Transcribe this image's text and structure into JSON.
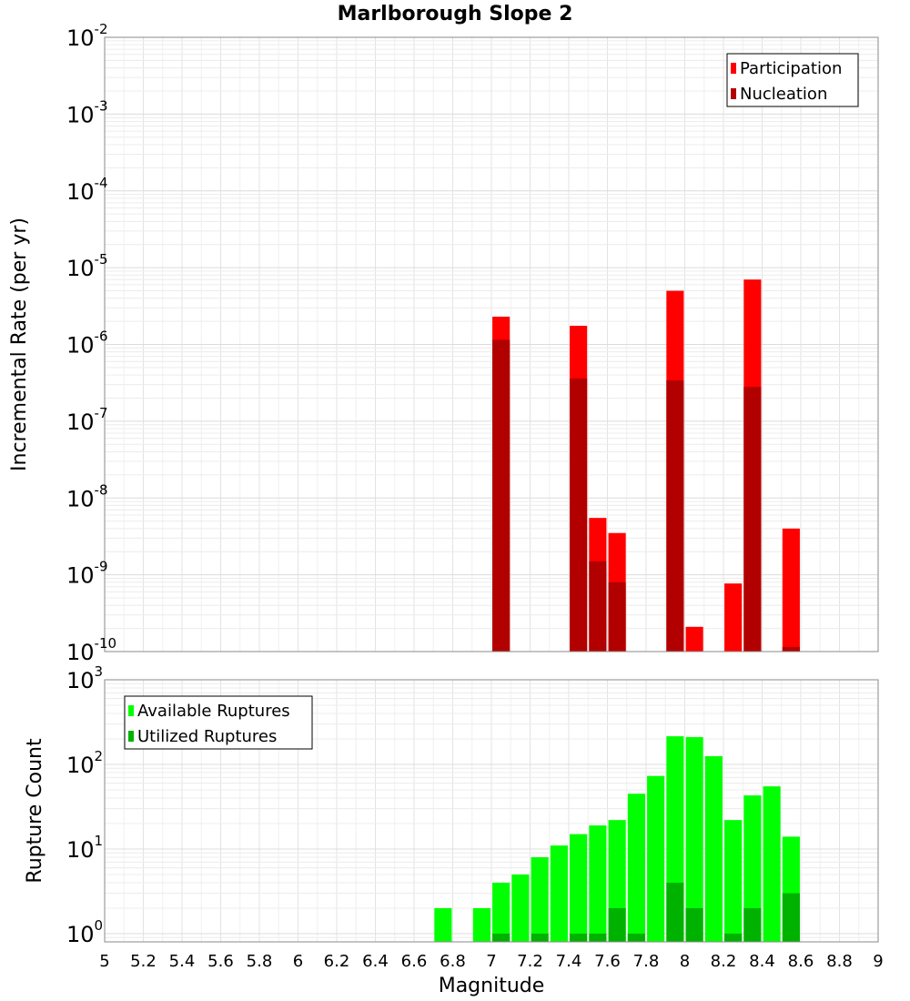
{
  "title": "Marlborough Slope 2",
  "chart_data": [
    {
      "type": "bar",
      "name": "incremental-rate",
      "ylabel": "Incremental Rate (per yr)",
      "yscale": "log",
      "ylim": [
        1e-10,
        0.01
      ],
      "xlim": [
        5,
        9
      ],
      "grid": true,
      "legend_position": "top-right",
      "y_ticks": [
        {
          "base": "10",
          "exp": "-10"
        },
        {
          "base": "10",
          "exp": "-9"
        },
        {
          "base": "10",
          "exp": "-8"
        },
        {
          "base": "10",
          "exp": "-7"
        },
        {
          "base": "10",
          "exp": "-6"
        },
        {
          "base": "10",
          "exp": "-5"
        },
        {
          "base": "10",
          "exp": "-4"
        },
        {
          "base": "10",
          "exp": "-3"
        },
        {
          "base": "10",
          "exp": "-2"
        }
      ],
      "series": [
        {
          "name": "Participation",
          "color": "#ff0000",
          "points": [
            {
              "x": 7.05,
              "y": 2.3e-06
            },
            {
              "x": 7.45,
              "y": 1.75e-06
            },
            {
              "x": 7.55,
              "y": 5.5e-09
            },
            {
              "x": 7.65,
              "y": 3.5e-09
            },
            {
              "x": 7.95,
              "y": 5e-06
            },
            {
              "x": 8.05,
              "y": 2.1e-10
            },
            {
              "x": 8.25,
              "y": 7.7e-10
            },
            {
              "x": 8.35,
              "y": 7e-06
            },
            {
              "x": 8.55,
              "y": 4e-09
            }
          ]
        },
        {
          "name": "Nucleation",
          "color": "#b20000",
          "points": [
            {
              "x": 7.05,
              "y": 1.15e-06
            },
            {
              "x": 7.45,
              "y": 3.6e-07
            },
            {
              "x": 7.55,
              "y": 1.5e-09
            },
            {
              "x": 7.65,
              "y": 8e-10
            },
            {
              "x": 7.95,
              "y": 3.4e-07
            },
            {
              "x": 8.35,
              "y": 2.8e-07
            },
            {
              "x": 8.55,
              "y": 1.15e-10
            }
          ]
        }
      ]
    },
    {
      "type": "bar",
      "name": "rupture-count",
      "ylabel": "Rupture Count",
      "xlabel": "Magnitude",
      "yscale": "log",
      "ylim": [
        0.8,
        1000
      ],
      "xlim": [
        5,
        9
      ],
      "grid": true,
      "legend_position": "top-left",
      "x_ticks": [
        "5",
        "5.2",
        "5.4",
        "5.6",
        "5.8",
        "6",
        "6.2",
        "6.4",
        "6.6",
        "6.8",
        "7",
        "7.2",
        "7.4",
        "7.6",
        "7.8",
        "8",
        "8.2",
        "8.4",
        "8.6",
        "8.8",
        "9"
      ],
      "y_ticks": [
        {
          "base": "10",
          "exp": "0"
        },
        {
          "base": "10",
          "exp": "1"
        },
        {
          "base": "10",
          "exp": "2"
        },
        {
          "base": "10",
          "exp": "3"
        }
      ],
      "series": [
        {
          "name": "Available Ruptures",
          "color": "#00ff00",
          "points": [
            {
              "x": 6.75,
              "y": 2
            },
            {
              "x": 6.95,
              "y": 2
            },
            {
              "x": 7.05,
              "y": 4
            },
            {
              "x": 7.15,
              "y": 5
            },
            {
              "x": 7.25,
              "y": 8
            },
            {
              "x": 7.35,
              "y": 11
            },
            {
              "x": 7.45,
              "y": 15
            },
            {
              "x": 7.55,
              "y": 19
            },
            {
              "x": 7.65,
              "y": 22
            },
            {
              "x": 7.75,
              "y": 45
            },
            {
              "x": 7.85,
              "y": 73
            },
            {
              "x": 7.95,
              "y": 215
            },
            {
              "x": 8.05,
              "y": 210
            },
            {
              "x": 8.15,
              "y": 125
            },
            {
              "x": 8.25,
              "y": 22
            },
            {
              "x": 8.35,
              "y": 43
            },
            {
              "x": 8.45,
              "y": 55
            },
            {
              "x": 8.55,
              "y": 14
            }
          ]
        },
        {
          "name": "Utilized Ruptures",
          "color": "#00b200",
          "points": [
            {
              "x": 7.05,
              "y": 1
            },
            {
              "x": 7.25,
              "y": 1
            },
            {
              "x": 7.45,
              "y": 1
            },
            {
              "x": 7.55,
              "y": 1
            },
            {
              "x": 7.65,
              "y": 2
            },
            {
              "x": 7.75,
              "y": 1
            },
            {
              "x": 7.95,
              "y": 4
            },
            {
              "x": 8.05,
              "y": 2
            },
            {
              "x": 8.25,
              "y": 1
            },
            {
              "x": 8.35,
              "y": 2
            },
            {
              "x": 8.55,
              "y": 3
            }
          ]
        }
      ]
    }
  ]
}
